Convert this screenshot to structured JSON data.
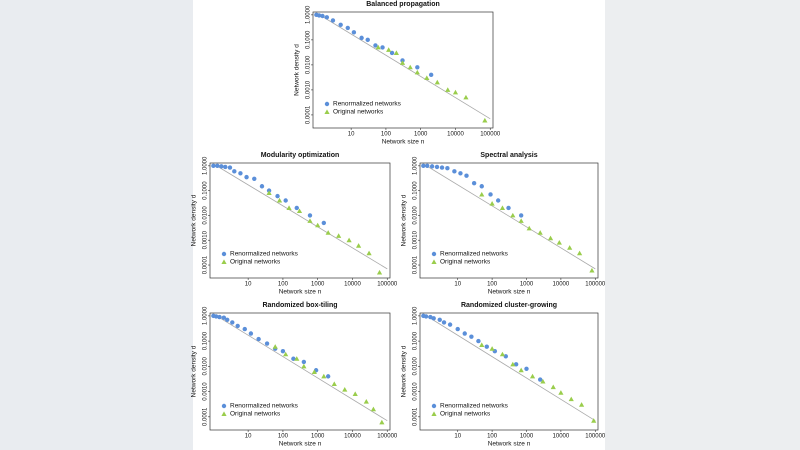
{
  "chart_data": [
    {
      "type": "scatter",
      "title": "Balanced propagation",
      "xlabel": "Network size n",
      "ylabel": "Network density d",
      "xscale": "log",
      "yscale": "log",
      "legend": "lower left",
      "xlim": [
        0.8,
        120000
      ],
      "ylim": [
        3e-05,
        1.3
      ],
      "xticks": [
        10,
        100,
        1000,
        10000,
        100000
      ],
      "yticks": [
        {
          "value": 1,
          "label": "1.0000"
        },
        {
          "value": 0.1,
          "label": "0.1000"
        },
        {
          "value": 0.01,
          "label": "0.0100"
        },
        {
          "value": 0.001,
          "label": "0.0010"
        },
        {
          "value": 0.0001,
          "label": "0.0001"
        }
      ],
      "series": [
        {
          "name": "Renormalized networks",
          "color": "#5b8fd9",
          "marker": "circle",
          "x": [
            1,
            1.2,
            1.5,
            2,
            3,
            5,
            8,
            12,
            20,
            30,
            50,
            80,
            150,
            300,
            800,
            2000
          ],
          "values": [
            1,
            0.95,
            0.9,
            0.8,
            0.6,
            0.4,
            0.3,
            0.2,
            0.12,
            0.1,
            0.06,
            0.05,
            0.03,
            0.015,
            0.008,
            0.004
          ]
        },
        {
          "name": "Original networks",
          "color": "#9acd4c",
          "marker": "triangle",
          "x": [
            60,
            120,
            200,
            300,
            500,
            800,
            1500,
            3000,
            6000,
            10000,
            20000,
            70000
          ],
          "values": [
            0.05,
            0.04,
            0.03,
            0.012,
            0.008,
            0.005,
            0.003,
            0.002,
            0.001,
            0.0008,
            0.0005,
            6e-05
          ]
        }
      ],
      "fit": {
        "x": [
          1,
          100000
        ],
        "values": [
          1.2,
          7e-05
        ]
      }
    },
    {
      "type": "scatter",
      "title": "Modularity optimization",
      "xlabel": "Network size n",
      "ylabel": "Network density d",
      "xscale": "log",
      "yscale": "log",
      "legend": "lower left",
      "xlim": [
        0.8,
        120000
      ],
      "ylim": [
        3e-05,
        1.3
      ],
      "xticks": [
        10,
        100,
        1000,
        10000,
        100000
      ],
      "yticks": [
        {
          "value": 1,
          "label": "1.0000"
        },
        {
          "value": 0.1,
          "label": "0.1000"
        },
        {
          "value": 0.01,
          "label": "0.0100"
        },
        {
          "value": 0.001,
          "label": "0.0010"
        },
        {
          "value": 0.0001,
          "label": "0.0001"
        }
      ],
      "series": [
        {
          "name": "Renormalized networks",
          "color": "#5b8fd9",
          "marker": "circle",
          "x": [
            1,
            1.3,
            1.7,
            2.2,
            3,
            4,
            6,
            9,
            15,
            25,
            40,
            70,
            120,
            250,
            600,
            1500
          ],
          "values": [
            1,
            1,
            0.95,
            0.9,
            0.85,
            0.6,
            0.5,
            0.35,
            0.3,
            0.15,
            0.1,
            0.06,
            0.04,
            0.02,
            0.01,
            0.005
          ]
        },
        {
          "name": "Original networks",
          "color": "#9acd4c",
          "marker": "triangle",
          "x": [
            40,
            80,
            150,
            300,
            600,
            1000,
            2000,
            4000,
            8000,
            15000,
            30000,
            60000
          ],
          "values": [
            0.08,
            0.04,
            0.02,
            0.015,
            0.006,
            0.004,
            0.002,
            0.0015,
            0.001,
            0.0006,
            0.0003,
            5e-05
          ]
        }
      ],
      "fit": {
        "x": [
          1,
          100000
        ],
        "values": [
          1.2,
          7e-05
        ]
      }
    },
    {
      "type": "scatter",
      "title": "Spectral analysis",
      "xlabel": "Network size n",
      "ylabel": "Network density d",
      "xscale": "log",
      "yscale": "log",
      "legend": "lower left",
      "xlim": [
        0.8,
        120000
      ],
      "ylim": [
        3e-05,
        1.3
      ],
      "xticks": [
        10,
        100,
        1000,
        10000,
        100000
      ],
      "yticks": [
        {
          "value": 1,
          "label": "1.0000"
        },
        {
          "value": 0.1,
          "label": "0.1000"
        },
        {
          "value": 0.01,
          "label": "0.0100"
        },
        {
          "value": 0.001,
          "label": "0.0010"
        },
        {
          "value": 0.0001,
          "label": "0.0001"
        }
      ],
      "series": [
        {
          "name": "Renormalized networks",
          "color": "#5b8fd9",
          "marker": "circle",
          "x": [
            1,
            1.3,
            1.8,
            2.5,
            3.5,
            5,
            8,
            12,
            18,
            30,
            50,
            90,
            150,
            300,
            700
          ],
          "values": [
            1,
            1,
            0.95,
            0.9,
            0.85,
            0.8,
            0.6,
            0.5,
            0.4,
            0.2,
            0.15,
            0.07,
            0.04,
            0.02,
            0.01
          ]
        },
        {
          "name": "Original networks",
          "color": "#9acd4c",
          "marker": "triangle",
          "x": [
            50,
            100,
            200,
            400,
            700,
            1200,
            2500,
            5000,
            9000,
            18000,
            35000,
            80000
          ],
          "values": [
            0.07,
            0.03,
            0.02,
            0.01,
            0.006,
            0.003,
            0.002,
            0.0012,
            0.0008,
            0.0005,
            0.0003,
            6e-05
          ]
        }
      ],
      "fit": {
        "x": [
          1,
          100000
        ],
        "values": [
          1.2,
          7e-05
        ]
      }
    },
    {
      "type": "scatter",
      "title": "Randomized box-tiling",
      "xlabel": "Network size n",
      "ylabel": "Network density d",
      "xscale": "log",
      "yscale": "log",
      "legend": "lower left",
      "xlim": [
        0.8,
        120000
      ],
      "ylim": [
        3e-05,
        1.3
      ],
      "xticks": [
        10,
        100,
        1000,
        10000,
        100000
      ],
      "yticks": [
        {
          "value": 1,
          "label": "1.0000"
        },
        {
          "value": 0.1,
          "label": "0.1000"
        },
        {
          "value": 0.01,
          "label": "0.0100"
        },
        {
          "value": 0.001,
          "label": "0.0010"
        },
        {
          "value": 0.0001,
          "label": "0.0001"
        }
      ],
      "series": [
        {
          "name": "Renormalized networks",
          "color": "#5b8fd9",
          "marker": "circle",
          "x": [
            1,
            1.2,
            1.5,
            2,
            2.5,
            3.5,
            5,
            8,
            12,
            20,
            35,
            60,
            100,
            200,
            400,
            900,
            2000
          ],
          "values": [
            1,
            0.95,
            0.9,
            0.85,
            0.7,
            0.55,
            0.4,
            0.3,
            0.2,
            0.12,
            0.08,
            0.05,
            0.04,
            0.02,
            0.015,
            0.007,
            0.004
          ]
        },
        {
          "name": "Original networks",
          "color": "#9acd4c",
          "marker": "triangle",
          "x": [
            60,
            120,
            250,
            400,
            800,
            1500,
            3000,
            6000,
            12000,
            25000,
            40000,
            70000
          ],
          "values": [
            0.06,
            0.03,
            0.02,
            0.01,
            0.006,
            0.004,
            0.002,
            0.0012,
            0.0008,
            0.0004,
            0.0002,
            6e-05
          ]
        }
      ],
      "fit": {
        "x": [
          1,
          100000
        ],
        "values": [
          1.2,
          7e-05
        ]
      }
    },
    {
      "type": "scatter",
      "title": "Randomized cluster-growing",
      "xlabel": "Network size n",
      "ylabel": "Network density d",
      "xscale": "log",
      "yscale": "log",
      "legend": "lower left",
      "xlim": [
        0.8,
        120000
      ],
      "ylim": [
        3e-05,
        1.3
      ],
      "xticks": [
        10,
        100,
        1000,
        10000,
        100000
      ],
      "yticks": [
        {
          "value": 1,
          "label": "1.0000"
        },
        {
          "value": 0.1,
          "label": "0.1000"
        },
        {
          "value": 0.01,
          "label": "0.0100"
        },
        {
          "value": 0.001,
          "label": "0.0010"
        },
        {
          "value": 0.0001,
          "label": "0.0001"
        }
      ],
      "series": [
        {
          "name": "Renormalized networks",
          "color": "#5b8fd9",
          "marker": "circle",
          "x": [
            1,
            1.2,
            1.6,
            2,
            3,
            4,
            6,
            10,
            16,
            25,
            40,
            70,
            120,
            250,
            500,
            1000,
            2500
          ],
          "values": [
            1,
            0.95,
            0.9,
            0.8,
            0.7,
            0.55,
            0.45,
            0.3,
            0.2,
            0.15,
            0.1,
            0.06,
            0.04,
            0.025,
            0.012,
            0.008,
            0.003
          ]
        },
        {
          "name": "Original networks",
          "color": "#9acd4c",
          "marker": "triangle",
          "x": [
            50,
            100,
            200,
            400,
            700,
            1500,
            3000,
            6000,
            10000,
            20000,
            40000,
            90000
          ],
          "values": [
            0.07,
            0.05,
            0.03,
            0.012,
            0.007,
            0.004,
            0.0025,
            0.0015,
            0.0009,
            0.0005,
            0.0003,
            7e-05
          ]
        }
      ],
      "fit": {
        "x": [
          1,
          100000
        ],
        "values": [
          1.2,
          7e-05
        ]
      }
    }
  ]
}
